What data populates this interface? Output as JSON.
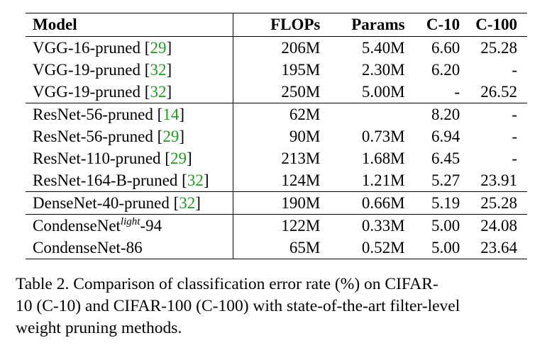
{
  "table": {
    "headers": {
      "model": "Model",
      "flops": "FLOPs",
      "params": "Params",
      "c10": "C-10",
      "c100": "C-100"
    },
    "rows": [
      {
        "model": "VGG-16-pruned ",
        "ref": "29",
        "flops": "206M",
        "params": "5.40M",
        "c10": "6.60",
        "c100": "25.28"
      },
      {
        "model": "VGG-19-pruned ",
        "ref": "32",
        "flops": "195M",
        "params": "2.30M",
        "c10": "6.20",
        "c100": "-"
      },
      {
        "model": "VGG-19-pruned ",
        "ref": "32",
        "flops": "250M",
        "params": "5.00M",
        "c10": "-",
        "c100": "26.52"
      },
      {
        "model": "ResNet-56-pruned ",
        "ref": "14",
        "flops": "62M",
        "params": "",
        "c10": "8.20",
        "c100": "-"
      },
      {
        "model": "ResNet-56-pruned ",
        "ref": "29",
        "flops": "90M",
        "params": "0.73M",
        "c10": "6.94",
        "c100": "-"
      },
      {
        "model": "ResNet-110-pruned ",
        "ref": "29",
        "flops": "213M",
        "params": "1.68M",
        "c10": "6.45",
        "c100": "-"
      },
      {
        "model": "ResNet-164-B-pruned ",
        "ref": "32",
        "flops": "124M",
        "params": "1.21M",
        "c10": "5.27",
        "c100": "23.91"
      },
      {
        "model": "DenseNet-40-pruned ",
        "ref": "32",
        "flops": "190M",
        "params": "0.66M",
        "c10": "5.19",
        "c100": "25.28"
      },
      {
        "model_prefix": "CondenseNet",
        "model_sup": "light",
        "model_suffix": "-94",
        "flops": "122M",
        "params": "0.33M",
        "c10": "5.00",
        "c100": "24.08"
      },
      {
        "model": "CondenseNet-86",
        "flops": "65M",
        "params": "0.52M",
        "c10": "5.00",
        "c100": "23.64"
      }
    ]
  },
  "caption": {
    "line1": "Table 2. Comparison of classification error rate (%) on CIFAR-",
    "line2": "10 (C-10) and CIFAR-100 (C-100) with state-of-the-art filter-level",
    "line3": "weight pruning methods."
  },
  "colors": {
    "reference_link": "#1aa01a",
    "text": "#000000",
    "background": "#ffffff"
  }
}
